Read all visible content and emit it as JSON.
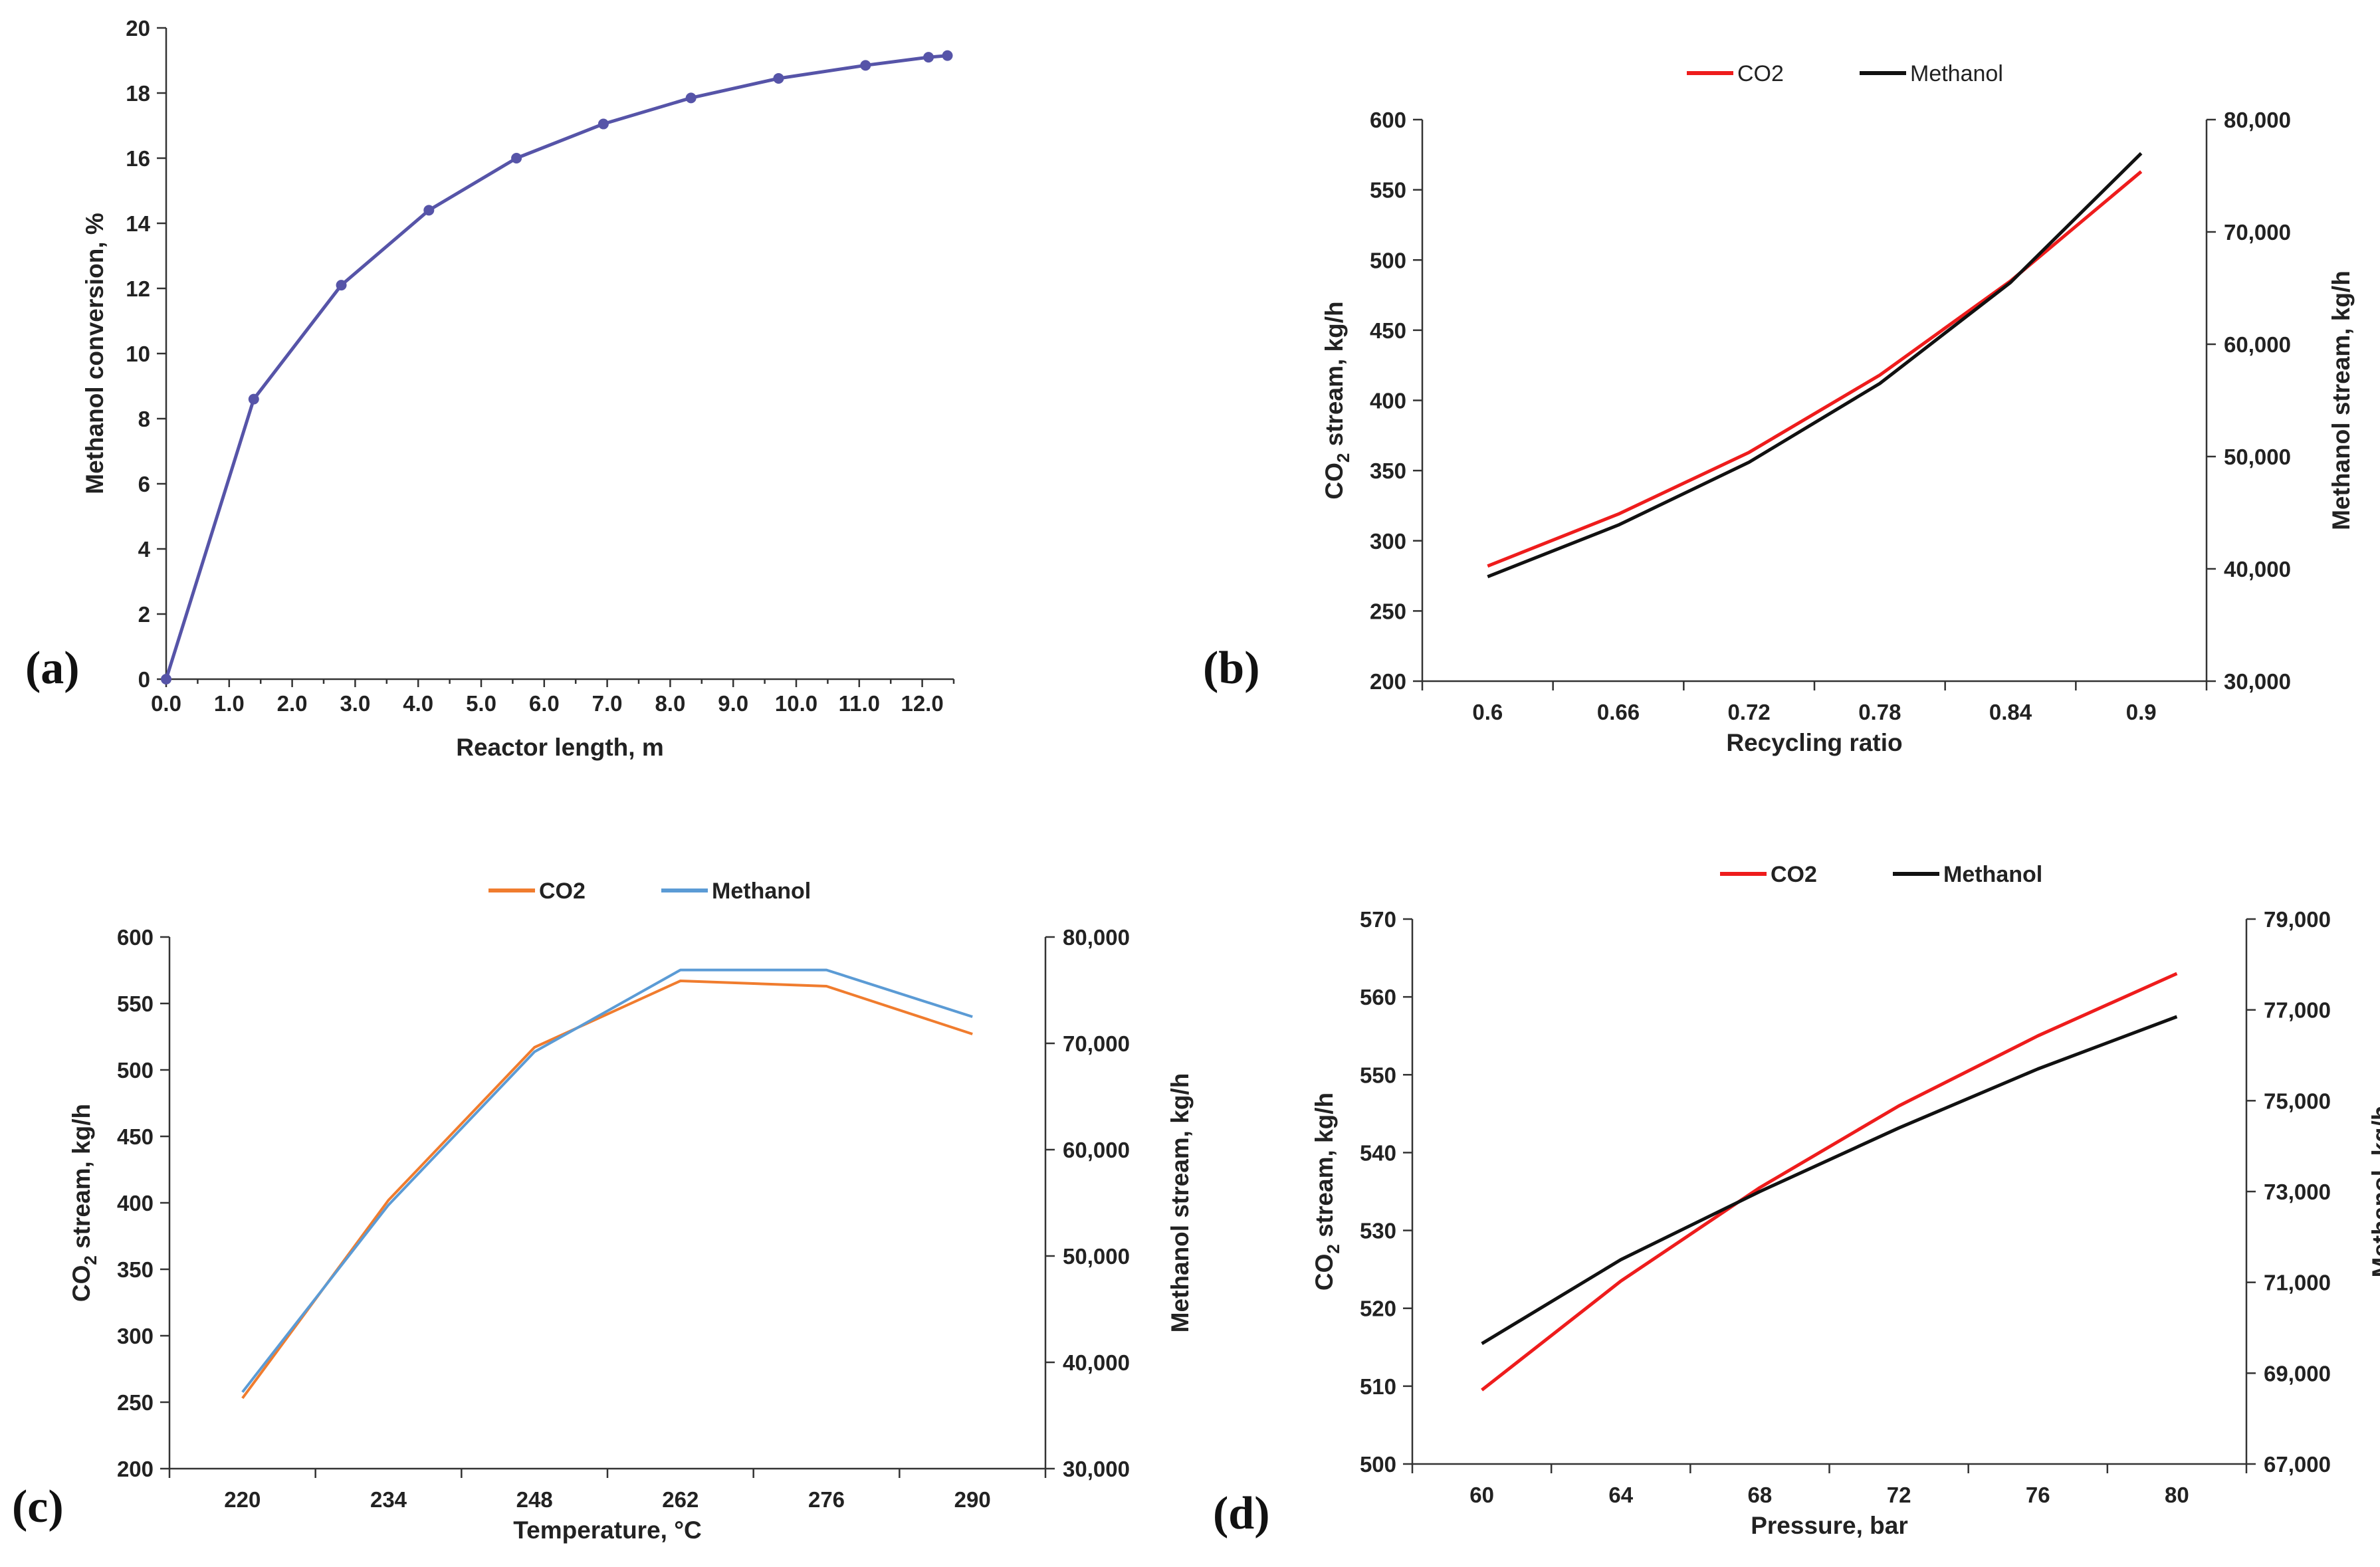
{
  "chart_data": [
    {
      "panel": "(a)",
      "type": "line",
      "title": "",
      "xlabel": "Reactor length, m",
      "ylabel": "Methanol conversion, %",
      "xlim": [
        0,
        12.5
      ],
      "ylim": [
        0,
        20
      ],
      "x_ticks": [
        "0.0",
        "1.0",
        "2.0",
        "3.0",
        "4.0",
        "5.0",
        "6.0",
        "7.0",
        "8.0",
        "9.0",
        "10.0",
        "11.0",
        "12.0"
      ],
      "y_ticks": [
        "0",
        "2",
        "4",
        "6",
        "8",
        "10",
        "12",
        "14",
        "16",
        "18",
        "20"
      ],
      "grid": false,
      "series": [
        {
          "name": "Methanol conversion",
          "color": "#5654a8",
          "markers": true,
          "x": [
            0,
            1.39,
            2.78,
            4.17,
            5.56,
            6.94,
            8.33,
            9.72,
            11.1,
            12.1,
            12.4
          ],
          "y": [
            0,
            8.6,
            12.1,
            14.4,
            16.0,
            17.05,
            17.85,
            18.45,
            18.85,
            19.1,
            19.15
          ]
        }
      ]
    },
    {
      "panel": "(b)",
      "type": "line",
      "title": "",
      "xlabel": "Recycling ratio",
      "ylabel_left_main": "CO",
      "ylabel_left_sub": "2",
      "ylabel_left_rest": " stream, kg/h",
      "ylabel_right": "Methanol stream, kg/h",
      "categories": [
        "0.6",
        "0.66",
        "0.72",
        "0.78",
        "0.84",
        "0.9"
      ],
      "ylim": [
        200,
        600
      ],
      "y2lim": [
        30000,
        80000
      ],
      "y_ticks": [
        "200",
        "250",
        "300",
        "350",
        "400",
        "450",
        "500",
        "550",
        "600"
      ],
      "y2_ticks": [
        "30,000",
        "40,000",
        "50,000",
        "60,000",
        "70,000",
        "80,000"
      ],
      "legend": [
        "CO2",
        "Methanol"
      ],
      "legend_position": "top",
      "grid": false,
      "series": [
        {
          "name": "CO2",
          "color": "#ee1c1c",
          "axis": "left",
          "values": [
            282,
            319,
            363,
            418,
            485,
            563
          ]
        },
        {
          "name": "Methanol",
          "color": "#111111",
          "axis": "right",
          "values": [
            39300,
            43900,
            49500,
            56500,
            65500,
            77000
          ]
        }
      ]
    },
    {
      "panel": "(c)",
      "type": "line",
      "title": "",
      "xlabel": "Temperature, °C",
      "ylabel_left_main": "CO",
      "ylabel_left_sub": "2",
      "ylabel_left_rest": " stream, kg/h",
      "ylabel_right": "Methanol stream, kg/h",
      "categories": [
        "220",
        "234",
        "248",
        "262",
        "276",
        "290"
      ],
      "ylim": [
        200,
        600
      ],
      "y2lim": [
        30000,
        80000
      ],
      "y_ticks": [
        "200",
        "250",
        "300",
        "350",
        "400",
        "450",
        "500",
        "550",
        "600"
      ],
      "y2_ticks": [
        "30,000",
        "40,000",
        "50,000",
        "60,000",
        "70,000",
        "80,000"
      ],
      "legend": [
        "CO2",
        "Methanol"
      ],
      "legend_position": "top",
      "grid": false,
      "series": [
        {
          "name": "CO2",
          "color": "#f07c2e",
          "axis": "left",
          "values": [
            253,
            402,
            517,
            567,
            563,
            527
          ]
        },
        {
          "name": "Methanol",
          "color": "#5b9bd5",
          "axis": "right",
          "values": [
            37200,
            54800,
            69200,
            76900,
            76900,
            72500
          ]
        }
      ]
    },
    {
      "panel": "(d)",
      "type": "line",
      "title": "",
      "xlabel": "Pressure, bar",
      "ylabel_left_main": "CO",
      "ylabel_left_sub": "2",
      "ylabel_left_rest": " stream, kg/h",
      "ylabel_right": "Methanol, kg/h",
      "categories": [
        "60",
        "64",
        "68",
        "72",
        "76",
        "80"
      ],
      "ylim": [
        500,
        570
      ],
      "y2lim": [
        67000,
        79000
      ],
      "y_ticks": [
        "500",
        "510",
        "520",
        "530",
        "540",
        "550",
        "560",
        "570"
      ],
      "y2_ticks": [
        "67,000",
        "69,000",
        "71,000",
        "73,000",
        "75,000",
        "77,000",
        "79,000"
      ],
      "legend": [
        "CO2",
        "Methanol"
      ],
      "legend_position": "top",
      "grid": false,
      "series": [
        {
          "name": "CO2",
          "color": "#ee1c1c",
          "axis": "left",
          "values": [
            509.5,
            523.5,
            535.5,
            546,
            555,
            563
          ]
        },
        {
          "name": "Methanol",
          "color": "#111111",
          "axis": "right",
          "values": [
            69650,
            71500,
            73000,
            74400,
            75700,
            76850
          ]
        }
      ]
    }
  ]
}
